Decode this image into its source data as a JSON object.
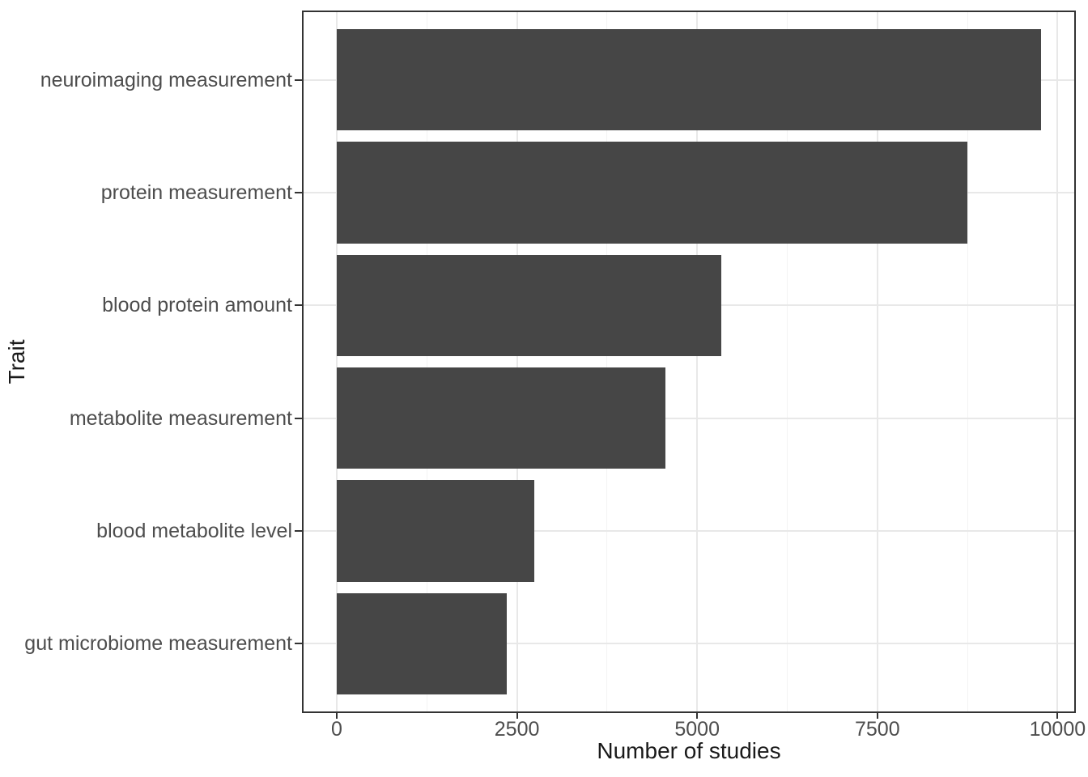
{
  "chart_data": {
    "type": "bar",
    "orientation": "horizontal",
    "title": "",
    "xlabel": "Number of studies",
    "ylabel": "Trait",
    "categories": [
      "neuroimaging measurement",
      "protein measurement",
      "blood protein amount",
      "metabolite measurement",
      "blood metabolite level",
      "gut microbiome measurement"
    ],
    "values": [
      9770,
      8750,
      5335,
      4560,
      2745,
      2360
    ],
    "x_ticks": [
      0,
      2500,
      5000,
      7500,
      10000
    ],
    "x_minor_gridlines": [
      1250,
      3750,
      6250,
      8750
    ],
    "xlim": [
      0,
      10000
    ],
    "grid": "major-and-minor-vertical, major-horizontal",
    "legend": "none",
    "colors": {
      "bar_fill": "#464646",
      "panel_border": "#333333",
      "grid_major": "#e8e8e8",
      "grid_minor": "#f3f3f3",
      "tick_mark": "#333333",
      "tick_label": "#4d4d4d",
      "axis_title": "#1a1a1a",
      "background": "#ffffff"
    }
  }
}
